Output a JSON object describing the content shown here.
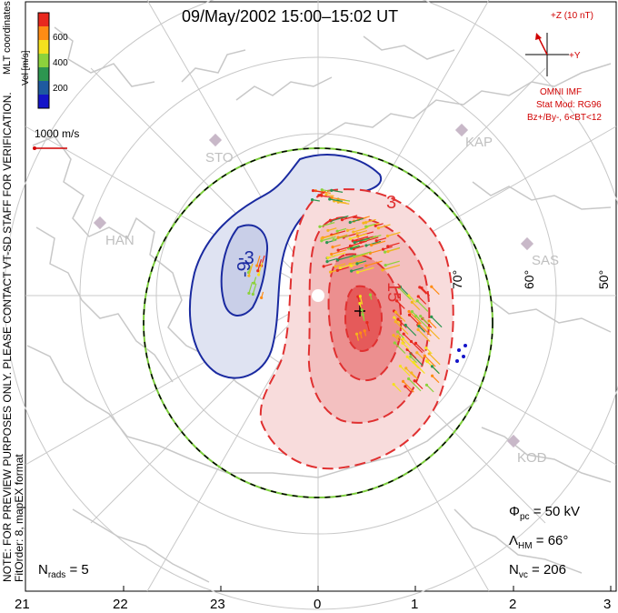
{
  "title": "09/May/2002 15:00–15:02 UT",
  "side_note_1": "NOTE: FOR PREVIEW PURPOSES ONLY. PLEASE CONTACT VT-SD STAFF FOR VERIFICATION.",
  "side_note_2": "FitOrder: 8, mapEX format",
  "coord_label": "MLT coordinates",
  "colorbar": {
    "unit": "Vel [m/s]",
    "ticks": [
      "600",
      "400",
      "200"
    ],
    "levels": [
      {
        "value": 600,
        "color": "#e8281e"
      },
      {
        "value": 500,
        "color": "#ff8c14"
      },
      {
        "value": 400,
        "color": "#f5e11e"
      },
      {
        "value": 300,
        "color": "#8cd23c"
      },
      {
        "value": 200,
        "color": "#2d9650"
      },
      {
        "value": 100,
        "color": "#1e5aa0"
      },
      {
        "value": 0,
        "color": "#1414c8"
      }
    ]
  },
  "reference_vector": "1000 m/s",
  "imf": {
    "z_label": "+Z (10 nT)",
    "y_label": "+Y",
    "source": "OMNI IMF",
    "model": "Stat Mod: RG96",
    "condition": "Bz+/By-, 6<BT<12"
  },
  "stations": [
    "STO",
    "KAP",
    "HAN",
    "SAS",
    "KOD"
  ],
  "latitude_labels": [
    "70°",
    "60°",
    "50°"
  ],
  "contour_labels": [
    "-3",
    "3",
    "15",
    "-9"
  ],
  "stats": {
    "phi_symbol": "Φ",
    "phi_sub": "pc",
    "phi_value": "= 50 kV",
    "lambda_symbol": "Λ",
    "lambda_sub": "HM",
    "lambda_value": "= 66°",
    "nvc_symbol": "N",
    "nvc_sub": "vc",
    "nvc_value": "= 206"
  },
  "nrads": {
    "symbol": "N",
    "sub": "rads",
    "value": "= 5"
  },
  "mlt_axis": [
    "21",
    "22",
    "23",
    "0",
    "1",
    "2",
    "3"
  ],
  "colors": {
    "positive_cell": "#e03030",
    "negative_cell": "#1a2aa0",
    "negative_fill": "#dfe3f2",
    "map_lines": "#c8c8c8",
    "boundary_green": "#7ccd3c",
    "imf_red": "#d00000"
  }
}
